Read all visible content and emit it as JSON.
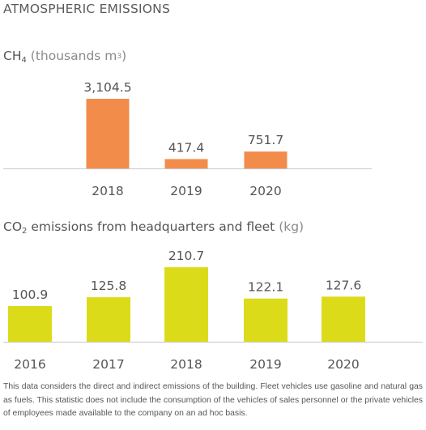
{
  "header": {
    "title": "ATMOSPHERIC EMISSIONS"
  },
  "colors": {
    "ch4_bar": "#f28c4b",
    "co2_bar": "#dcdb1a",
    "axis": "#c8c8c8"
  },
  "chart_data": [
    {
      "id": "ch4",
      "type": "bar",
      "title_main": "CH",
      "title_sub": "4",
      "title_unit_pre": "(thousands m",
      "title_unit_sup": "3",
      "title_unit_post": ")",
      "categories": [
        "2018",
        "2019",
        "2020"
      ],
      "values": [
        3104.5,
        417.4,
        751.7
      ],
      "value_labels": [
        "3,104.5",
        "417.4",
        "751.7"
      ],
      "ylim": [
        0,
        3104.5
      ],
      "grid": false,
      "legend": "none"
    },
    {
      "id": "co2",
      "type": "bar",
      "title_main": "CO",
      "title_sub": "2",
      "title_rest": " emissions from headquarters and fleet ",
      "title_unit": "(kg)",
      "categories": [
        "2016",
        "2017",
        "2018",
        "2019",
        "2020"
      ],
      "values": [
        100.9,
        125.8,
        210.7,
        122.1,
        127.6
      ],
      "value_labels": [
        "100.9",
        "125.8",
        "210.7",
        "122.1",
        "127.6"
      ],
      "ylim": [
        0,
        210.7
      ],
      "grid": false,
      "legend": "none"
    }
  ],
  "footnote": "This data considers the direct and indirect emissions of the building. Fleet vehicles use gasoline and natural gas as fuels. This statistic does not include the consumption of the vehicles of sales personnel or the private vehicles of employees made available to the company on an ad hoc basis."
}
